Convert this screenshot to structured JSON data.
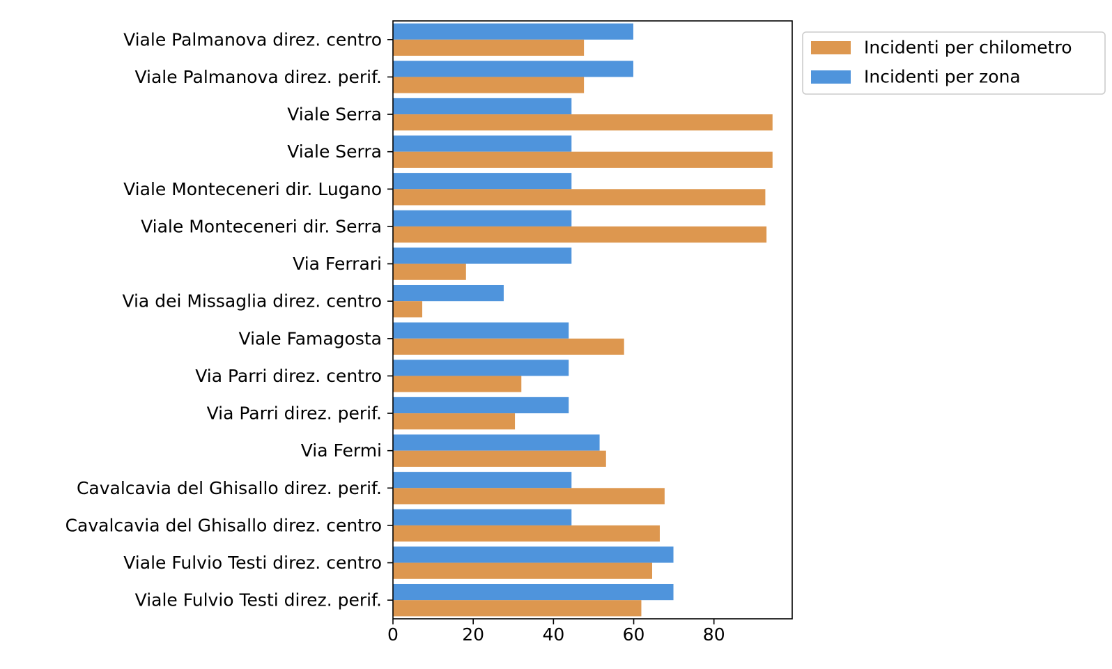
{
  "chart_data": {
    "type": "bar",
    "orientation": "horizontal",
    "categories": [
      "Viale Palmanova direz. centro",
      "Viale Palmanova direz. perif.",
      "Viale Serra",
      "Viale Serra",
      "Viale Monteceneri dir. Lugano",
      "Viale Monteceneri dir. Serra",
      "Via Ferrari",
      "Via dei Missaglia direz. centro",
      "Viale Famagosta",
      "Via Parri direz. centro",
      "Via Parri direz. perif.",
      "Via Fermi",
      "Cavalcavia del Ghisallo direz. perif.",
      "Cavalcavia del Ghisallo direz. centro",
      "Viale Fulvio Testi direz. centro",
      "Viale Fulvio Testi direz. perif."
    ],
    "series": [
      {
        "name": "Incidenti per zona",
        "color": "#4f94dc",
        "values": [
          59.9,
          59.9,
          44.5,
          44.5,
          44.5,
          44.5,
          44.5,
          27.6,
          43.8,
          43.8,
          43.8,
          51.5,
          44.5,
          44.5,
          69.9,
          69.9
        ]
      },
      {
        "name": "Incidenti per chilometro",
        "color": "#dd974f",
        "values": [
          47.6,
          47.6,
          94.6,
          94.6,
          92.8,
          93.1,
          18.2,
          7.3,
          57.6,
          32.0,
          30.4,
          53.1,
          67.7,
          66.5,
          64.6,
          61.9
        ]
      }
    ],
    "legend_order": [
      "Incidenti per chilometro",
      "Incidenti per zona"
    ],
    "legend_placement": "outside top-right",
    "xlim": [
      0,
      99.5
    ],
    "xticks": [
      0,
      20,
      40,
      60,
      80
    ],
    "xtick_labels": [
      "0",
      "20",
      "40",
      "60",
      "80"
    ],
    "title": "",
    "xlabel": "",
    "ylabel": "",
    "grid": false
  }
}
